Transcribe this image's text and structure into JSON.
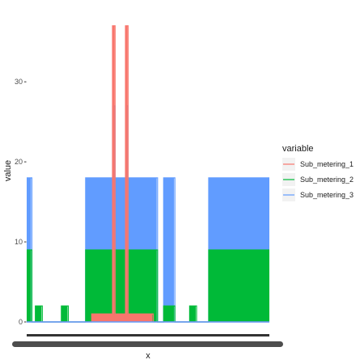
{
  "chart_data": {
    "type": "line",
    "xlabel": "x",
    "ylabel": "value",
    "ylim": [
      0,
      38
    ],
    "y_ticks": [
      0,
      10,
      20,
      30
    ],
    "grid": false,
    "legend": {
      "title": "variable",
      "position": "right",
      "entries": [
        {
          "name": "Sub_metering_1",
          "color": "#F8766D"
        },
        {
          "name": "Sub_metering_2",
          "color": "#00BA38"
        },
        {
          "name": "Sub_metering_3",
          "color": "#619CFF"
        }
      ]
    },
    "n_points": 280,
    "series": [
      {
        "name": "Sub_metering_3",
        "color": "#619CFF",
        "segments": [
          {
            "start": 0,
            "end": 5,
            "value": 18
          },
          {
            "start": 68,
            "end": 150,
            "value": 18
          },
          {
            "start": 158,
            "end": 170,
            "value": 18
          },
          {
            "start": 210,
            "end": 280,
            "value": 18
          }
        ],
        "spikes": [
          {
            "at": 100,
            "value": 27
          },
          {
            "at": 115,
            "value": 27
          }
        ]
      },
      {
        "name": "Sub_metering_2",
        "color": "#00BA38",
        "segments": [
          {
            "start": 0,
            "end": 5,
            "value": 9
          },
          {
            "start": 10,
            "end": 17,
            "value": 2
          },
          {
            "start": 40,
            "end": 47,
            "value": 2
          },
          {
            "start": 68,
            "end": 150,
            "value": 9
          },
          {
            "start": 158,
            "end": 170,
            "value": 2
          },
          {
            "start": 188,
            "end": 195,
            "value": 2
          },
          {
            "start": 210,
            "end": 280,
            "value": 9
          }
        ]
      },
      {
        "name": "Sub_metering_1",
        "color": "#F8766D",
        "segments": [
          {
            "start": 75,
            "end": 145,
            "value": 1
          }
        ],
        "spikes": [
          {
            "at": 100,
            "value": 37
          },
          {
            "at": 115,
            "value": 37
          }
        ]
      }
    ]
  }
}
